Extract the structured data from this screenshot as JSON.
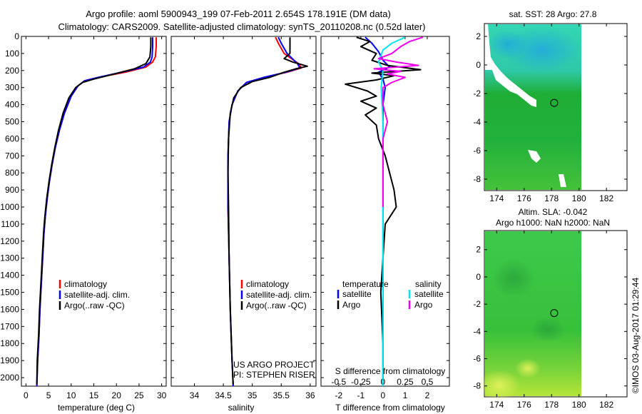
{
  "title": {
    "line1": "Argo profile: aoml 5900943_199 07-Feb-2011 2.654S 178.191E (DM data)",
    "line2": "Climatology: CARS2009. Satellite-adjusted climatology: synTS_20110208.nc (0.52d later)"
  },
  "depth_axis": {
    "ylim": [
      0,
      2050
    ],
    "ticks": [
      0,
      100,
      200,
      300,
      400,
      500,
      600,
      700,
      800,
      900,
      1000,
      1100,
      1200,
      1300,
      1400,
      1500,
      1600,
      1700,
      1800,
      1900,
      2000
    ]
  },
  "colors": {
    "climatology": "#ff0000",
    "satellite": "#0000ff",
    "argo": "#000000",
    "salinity_satellite": "#00e5ee",
    "salinity_argo": "#ee00ee"
  },
  "chart_data": [
    {
      "type": "line",
      "id": "temperature",
      "xlabel": "temperature (deg C)",
      "xlim": [
        -1,
        31
      ],
      "xticks": [
        0,
        5,
        10,
        15,
        20,
        25,
        30
      ],
      "legend": [
        "climatology",
        "satellite-adj. clim.",
        "Argo(..raw -QC)"
      ],
      "series": [
        {
          "name": "climatology",
          "color": "#ff0000",
          "points": [
            [
              28.8,
              5
            ],
            [
              28.8,
              60
            ],
            [
              28.6,
              120
            ],
            [
              28.0,
              150
            ],
            [
              26.5,
              180
            ],
            [
              22.0,
              210
            ],
            [
              16.0,
              240
            ],
            [
              13.0,
              260
            ],
            [
              11.5,
              290
            ],
            [
              10.0,
              350
            ],
            [
              8.5,
              450
            ],
            [
              7.4,
              550
            ],
            [
              6.5,
              650
            ],
            [
              5.8,
              750
            ],
            [
              5.2,
              850
            ],
            [
              4.7,
              950
            ],
            [
              4.3,
              1050
            ],
            [
              4.0,
              1150
            ],
            [
              3.7,
              1300
            ],
            [
              3.4,
              1450
            ],
            [
              3.1,
              1600
            ],
            [
              2.9,
              1750
            ],
            [
              2.6,
              1900
            ],
            [
              2.4,
              2050
            ]
          ]
        },
        {
          "name": "satellite-adj. clim.",
          "color": "#0000ff",
          "points": [
            [
              28.0,
              5
            ],
            [
              28.0,
              60
            ],
            [
              27.9,
              120
            ],
            [
              27.5,
              150
            ],
            [
              26.0,
              180
            ],
            [
              22.0,
              205
            ],
            [
              16.0,
              240
            ],
            [
              13.0,
              260
            ],
            [
              11.5,
              290
            ],
            [
              10.0,
              350
            ],
            [
              8.5,
              450
            ],
            [
              7.4,
              550
            ],
            [
              6.5,
              650
            ],
            [
              5.8,
              750
            ],
            [
              5.2,
              850
            ],
            [
              4.7,
              950
            ],
            [
              4.3,
              1050
            ],
            [
              4.0,
              1150
            ],
            [
              3.7,
              1300
            ],
            [
              3.4,
              1450
            ],
            [
              3.1,
              1600
            ],
            [
              2.9,
              1750
            ],
            [
              2.6,
              1900
            ],
            [
              2.4,
              2050
            ]
          ]
        },
        {
          "name": "Argo(..raw -QC)",
          "color": "#000000",
          "points": [
            [
              27.6,
              5
            ],
            [
              27.6,
              60
            ],
            [
              27.4,
              120
            ],
            [
              26.5,
              160
            ],
            [
              24.0,
              190
            ],
            [
              19.5,
              220
            ],
            [
              15.0,
              250
            ],
            [
              12.5,
              270
            ],
            [
              11.0,
              300
            ],
            [
              9.5,
              360
            ],
            [
              8.2,
              450
            ],
            [
              7.2,
              550
            ],
            [
              6.4,
              650
            ],
            [
              5.7,
              750
            ],
            [
              5.1,
              850
            ],
            [
              4.6,
              950
            ],
            [
              4.2,
              1050
            ],
            [
              3.9,
              1150
            ],
            [
              3.6,
              1300
            ],
            [
              3.3,
              1450
            ],
            [
              3.0,
              1600
            ],
            [
              2.8,
              1750
            ],
            [
              2.5,
              1900
            ],
            [
              2.4,
              2040
            ]
          ]
        }
      ]
    },
    {
      "type": "line",
      "id": "salinity",
      "xlabel": "salinity",
      "xlim": [
        33.6,
        36.1
      ],
      "xticks": [
        34,
        34.5,
        35,
        35.5,
        36
      ],
      "legend": [
        "climatology",
        "satellite-adj. clim.",
        "Argo(..raw -QC)"
      ],
      "series": [
        {
          "name": "climatology",
          "color": "#ff0000",
          "points": [
            [
              35.4,
              5
            ],
            [
              35.45,
              40
            ],
            [
              35.55,
              100
            ],
            [
              35.8,
              160
            ],
            [
              35.85,
              185
            ],
            [
              35.6,
              210
            ],
            [
              35.2,
              240
            ],
            [
              34.9,
              270
            ],
            [
              34.75,
              320
            ],
            [
              34.65,
              400
            ],
            [
              34.6,
              500
            ],
            [
              34.58,
              700
            ],
            [
              34.58,
              1000
            ],
            [
              34.6,
              1300
            ],
            [
              34.62,
              1600
            ],
            [
              34.65,
              1900
            ],
            [
              34.67,
              2050
            ]
          ]
        },
        {
          "name": "satellite-adj. clim.",
          "color": "#0000ff",
          "points": [
            [
              35.45,
              5
            ],
            [
              35.5,
              40
            ],
            [
              35.6,
              100
            ],
            [
              35.78,
              160
            ],
            [
              35.82,
              185
            ],
            [
              35.58,
              210
            ],
            [
              35.2,
              240
            ],
            [
              34.9,
              270
            ],
            [
              34.75,
              320
            ],
            [
              34.65,
              400
            ],
            [
              34.6,
              500
            ],
            [
              34.58,
              700
            ],
            [
              34.58,
              1000
            ],
            [
              34.6,
              1300
            ],
            [
              34.62,
              1600
            ],
            [
              34.65,
              1900
            ],
            [
              34.67,
              2050
            ]
          ]
        },
        {
          "name": "Argo(..raw -QC)",
          "color": "#000000",
          "points": [
            [
              35.65,
              5
            ],
            [
              35.65,
              60
            ],
            [
              35.65,
              100
            ],
            [
              35.55,
              130
            ],
            [
              35.7,
              150
            ],
            [
              35.95,
              175
            ],
            [
              35.75,
              190
            ],
            [
              35.55,
              210
            ],
            [
              35.3,
              240
            ],
            [
              35.0,
              265
            ],
            [
              34.8,
              300
            ],
            [
              34.68,
              360
            ],
            [
              34.62,
              450
            ],
            [
              34.59,
              600
            ],
            [
              34.58,
              800
            ],
            [
              34.59,
              1000
            ],
            [
              34.6,
              1300
            ],
            [
              34.62,
              1600
            ],
            [
              34.65,
              1900
            ],
            [
              34.67,
              2040
            ]
          ]
        }
      ]
    },
    {
      "type": "line",
      "id": "differences",
      "xlabel": "T difference from climatology",
      "xlabel_top": "S difference from climatology",
      "xlim": [
        -2.8,
        3.0
      ],
      "xticks": [
        -2,
        -1,
        0,
        1,
        2
      ],
      "s_xticks": [
        -0.5,
        -0.25,
        0,
        0.25,
        0.5
      ],
      "s_xlim": [
        -0.7,
        0.75
      ],
      "legend_temperature": "temperature",
      "legend_salinity": "salinity",
      "legend_items": [
        "satellite",
        "Argo"
      ],
      "series": [
        {
          "name": "temperature satellite",
          "color": "#0000ff",
          "points": [
            [
              -0.8,
              5
            ],
            [
              -0.5,
              40
            ],
            [
              -0.2,
              90
            ],
            [
              0.0,
              140
            ],
            [
              0.3,
              180
            ],
            [
              -0.2,
              210
            ],
            [
              0.0,
              250
            ],
            [
              0.1,
              300
            ],
            [
              0.0,
              400
            ],
            [
              0.0,
              700
            ],
            [
              0.0,
              1000
            ],
            [
              0.0,
              1500
            ],
            [
              0.0,
              2050
            ]
          ]
        },
        {
          "name": "temperature Argo",
          "color": "#000000",
          "points": [
            [
              -1.2,
              5
            ],
            [
              -0.6,
              30
            ],
            [
              -1.0,
              60
            ],
            [
              -0.3,
              100
            ],
            [
              -0.5,
              140
            ],
            [
              0.2,
              170
            ],
            [
              1.7,
              195
            ],
            [
              -0.5,
              215
            ],
            [
              0.5,
              230
            ],
            [
              -0.3,
              255
            ],
            [
              -1.7,
              280
            ],
            [
              -0.7,
              320
            ],
            [
              -0.3,
              350
            ],
            [
              -1.0,
              380
            ],
            [
              -0.3,
              420
            ],
            [
              -0.8,
              460
            ],
            [
              -0.3,
              520
            ],
            [
              -0.2,
              600
            ],
            [
              0.1,
              700
            ],
            [
              0.3,
              800
            ],
            [
              0.5,
              900
            ],
            [
              0.6,
              1000
            ],
            [
              0.1,
              1100
            ],
            [
              0.0,
              1300
            ],
            [
              -0.1,
              1500
            ],
            [
              0.0,
              1800
            ],
            [
              0.0,
              2040
            ]
          ]
        },
        {
          "name": "salinity satellite",
          "color": "#00e5ee",
          "points": [
            [
              0.25,
              5
            ],
            [
              0.1,
              40
            ],
            [
              0.0,
              80
            ],
            [
              -0.05,
              150
            ],
            [
              0.0,
              200
            ],
            [
              -0.02,
              300
            ],
            [
              0.0,
              500
            ],
            [
              0.0,
              800
            ],
            [
              0.0,
              1100
            ],
            [
              0.0,
              1500
            ],
            [
              0.0,
              2050
            ]
          ]
        },
        {
          "name": "salinity Argo",
          "color": "#ee00ee",
          "points": [
            [
              0.45,
              5
            ],
            [
              0.3,
              30
            ],
            [
              0.2,
              60
            ],
            [
              0.1,
              100
            ],
            [
              -0.05,
              130
            ],
            [
              0.15,
              150
            ],
            [
              0.4,
              170
            ],
            [
              -0.1,
              190
            ],
            [
              0.2,
              205
            ],
            [
              0.05,
              220
            ],
            [
              0.25,
              240
            ],
            [
              0.1,
              270
            ],
            [
              0.0,
              300
            ],
            [
              0.0,
              400
            ],
            [
              0.05,
              500
            ],
            [
              0.0,
              600
            ],
            [
              0.0,
              700
            ],
            [
              0.0,
              900
            ],
            [
              0.0,
              1000
            ]
          ]
        }
      ]
    }
  ],
  "annotations": {
    "project": "US ARGO PROJECT",
    "pi": "PI: STEPHEN RISER"
  },
  "map_sst": {
    "title": "sat. SST: 28 Argo: 27.8",
    "xticks": [
      174,
      176,
      178,
      180,
      182
    ],
    "yticks": [
      2,
      0,
      -2,
      -4,
      -6,
      -8
    ],
    "xlim": [
      173.1,
      183.5
    ],
    "ylim": [
      -8.8,
      2.9
    ],
    "data_xmax": 180.0,
    "argo_lon": 178.191,
    "argo_lat": -2.654
  },
  "map_sla": {
    "title1": "Altim. SLA: -0.042",
    "title2": "Argo h1000: NaN h2000: NaN",
    "xticks": [
      174,
      176,
      178,
      180,
      182
    ],
    "yticks": [
      2,
      0,
      -2,
      -4,
      -6,
      -8
    ],
    "xlim": [
      173.1,
      183.5
    ],
    "ylim": [
      -8.8,
      3.4
    ],
    "data_xmax": 180.0,
    "argo_lon": 178.191,
    "argo_lat": -2.654
  },
  "footer": "©IMOS 03-Aug-2017 01:29:44"
}
